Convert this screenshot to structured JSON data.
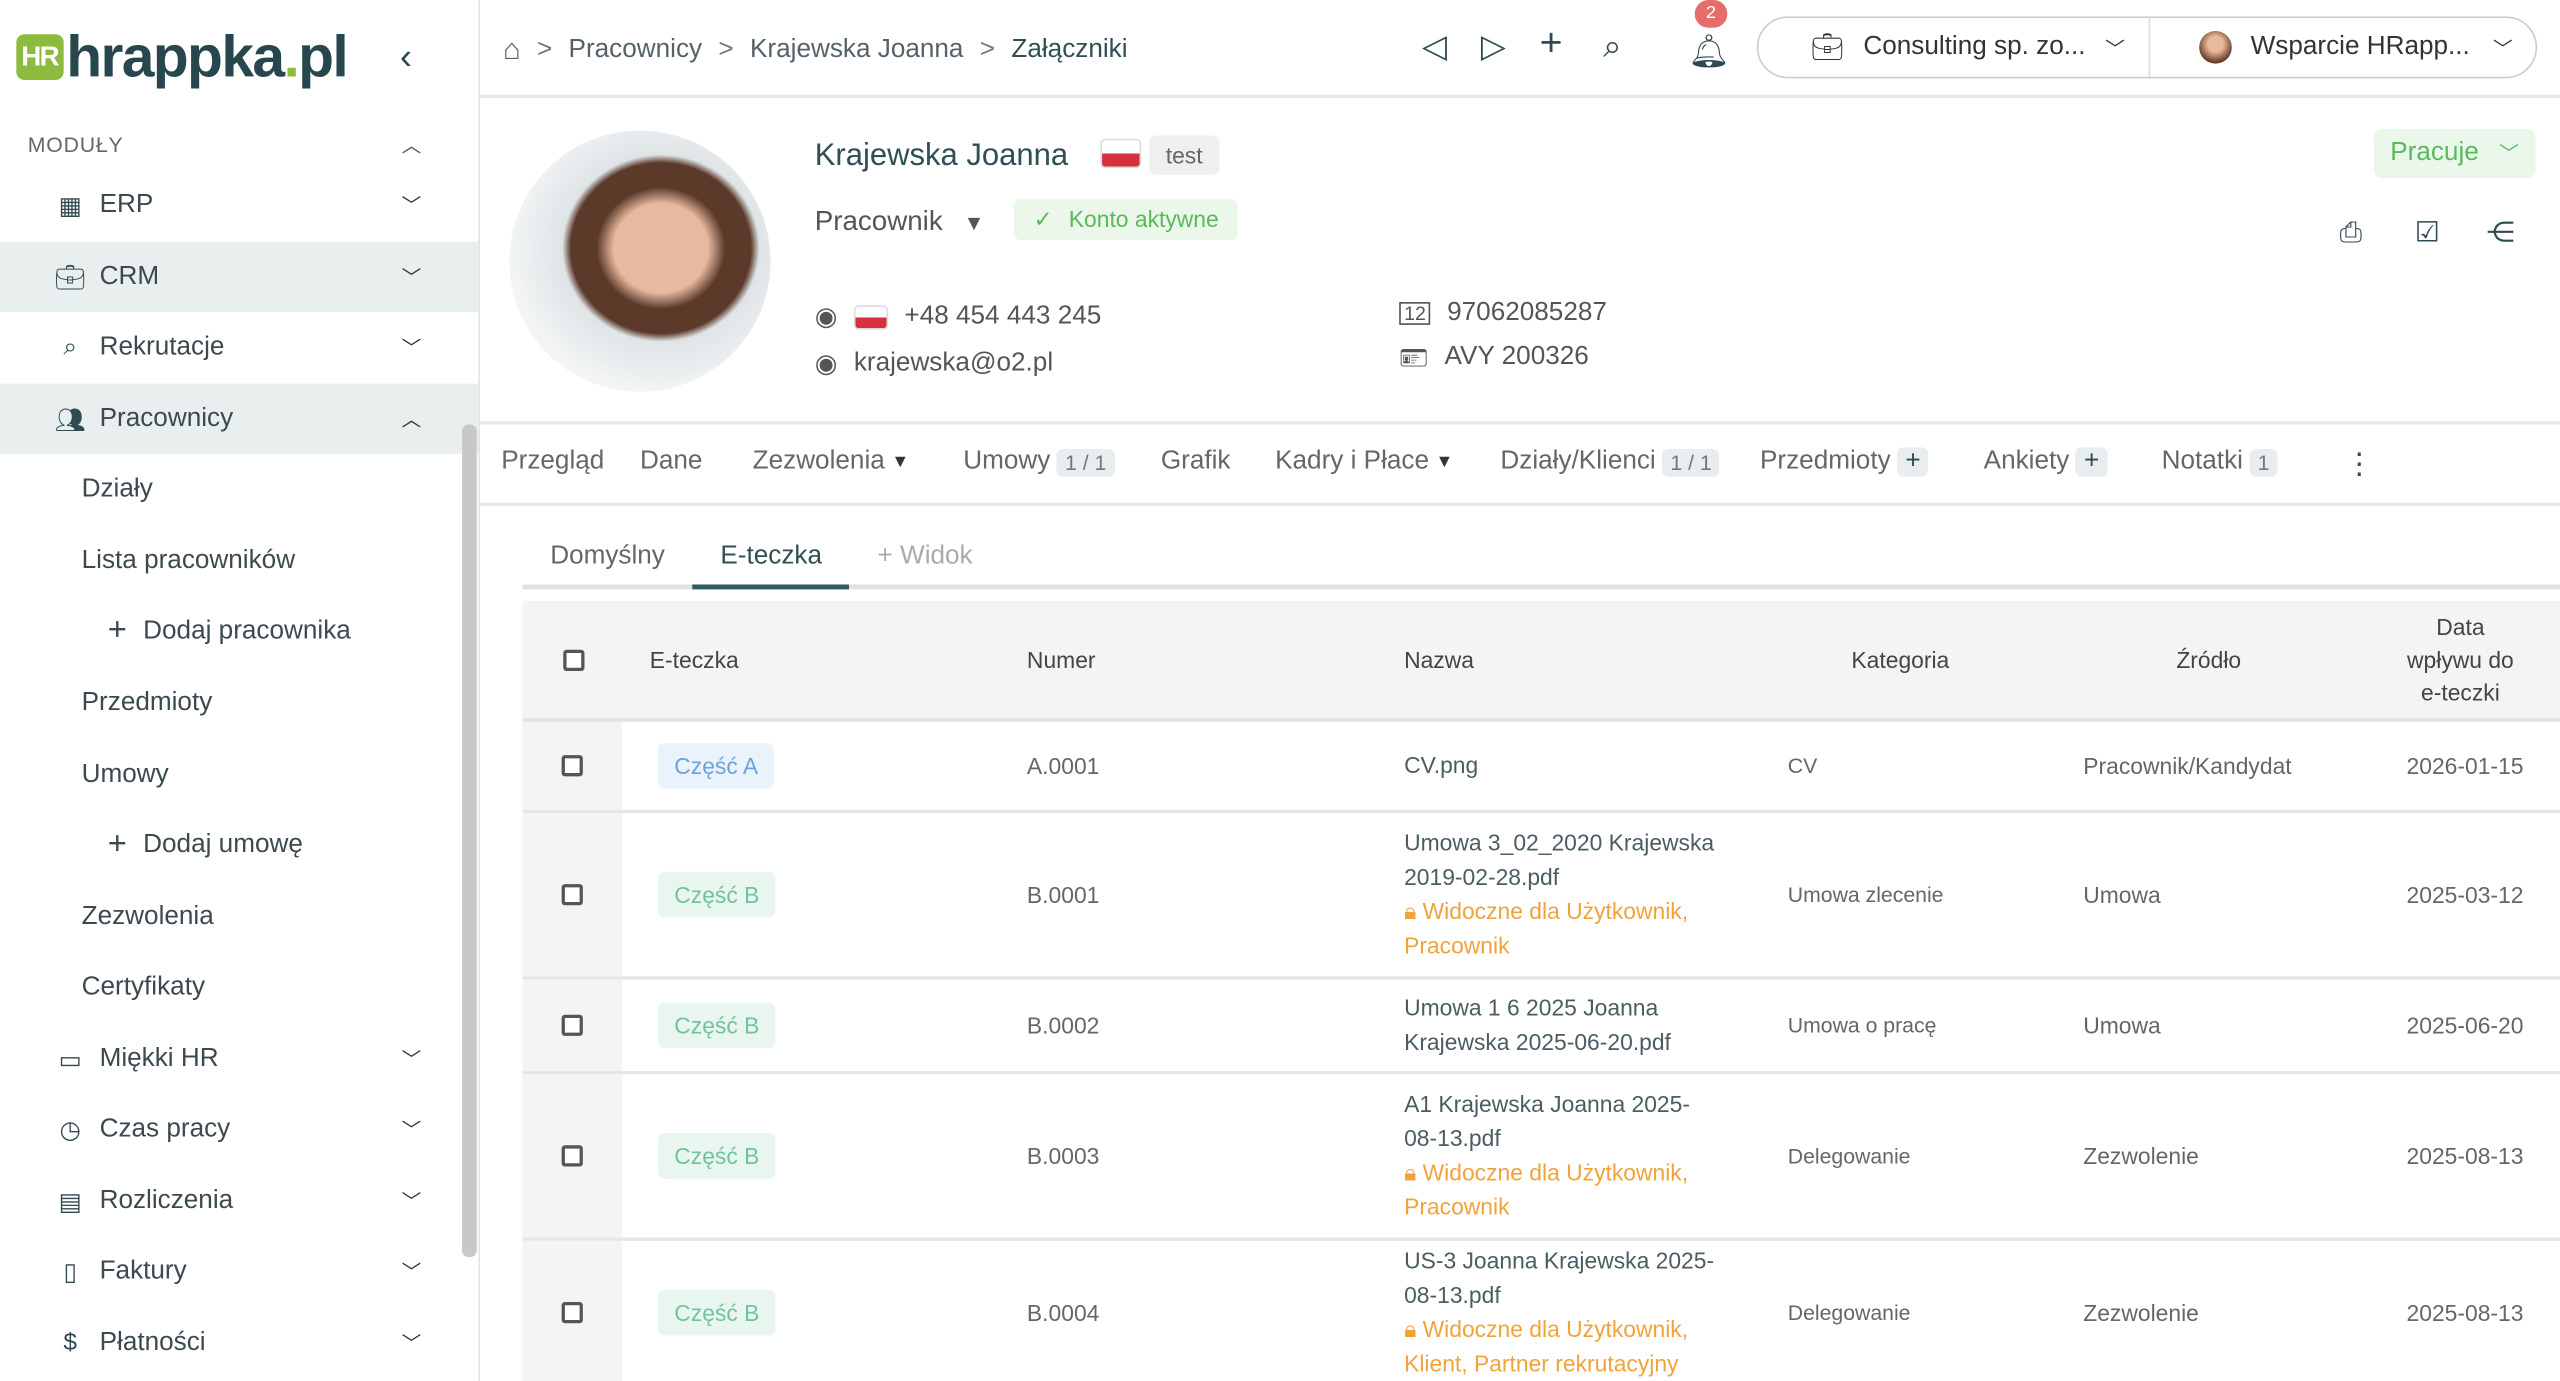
{
  "logo": {
    "text": "hrappka.pl"
  },
  "sidebar": {
    "section": "MODUŁY",
    "items": [
      {
        "label": "ERP",
        "icon": "building-icon"
      },
      {
        "label": "CRM",
        "icon": "briefcase-icon"
      },
      {
        "label": "Rekrutacje",
        "icon": "search-icon"
      },
      {
        "label": "Pracownicy",
        "icon": "users-icon"
      },
      {
        "label": "Działy"
      },
      {
        "label": "Lista pracowników"
      },
      {
        "label": "Dodaj pracownika"
      },
      {
        "label": "Przedmioty"
      },
      {
        "label": "Umowy"
      },
      {
        "label": "Dodaj umowę"
      },
      {
        "label": "Zezwolenia"
      },
      {
        "label": "Certyfikaty"
      },
      {
        "label": "Miękki HR",
        "icon": "teacher-icon"
      },
      {
        "label": "Czas pracy",
        "icon": "briefcase-clock-icon"
      },
      {
        "label": "Rozliczenia",
        "icon": "calculator-icon"
      },
      {
        "label": "Faktury",
        "icon": "invoice-icon"
      },
      {
        "label": "Płatności",
        "icon": "dollar-icon"
      }
    ]
  },
  "breadcrumb": [
    "Pracownicy",
    "Krajewska Joanna",
    "Załączniki"
  ],
  "topbar": {
    "notifications": "2",
    "company": "Consulting sp. zo...",
    "user": "Wsparcie HRapp..."
  },
  "profile": {
    "name": "Krajewska Joanna",
    "tag": "test",
    "role": "Pracownik",
    "account": "Konto aktywne",
    "status": "Pracuje",
    "phone": "+48 454 443 245",
    "email": "krajewska@o2.pl",
    "pesel": "97062085287",
    "id_doc": "AVY 200326"
  },
  "tabs": [
    {
      "label": "Przegląd"
    },
    {
      "label": "Dane"
    },
    {
      "label": "Zezwolenia",
      "dropdown": true
    },
    {
      "label": "Umowy",
      "count": "1 / 1"
    },
    {
      "label": "Grafik"
    },
    {
      "label": "Kadry i Płace",
      "dropdown": true
    },
    {
      "label": "Działy/Klienci",
      "count": "1 / 1"
    },
    {
      "label": "Przedmioty",
      "plus": "+"
    },
    {
      "label": "Ankiety",
      "plus": "+"
    },
    {
      "label": "Notatki",
      "count": "1"
    }
  ],
  "subtabs": [
    "Domyślny",
    "E-teczka",
    "+ Widok"
  ],
  "table": {
    "headers": [
      "E-teczka",
      "Numer",
      "Nazwa",
      "Kategoria",
      "Źródło",
      "Data wpływu do e-teczki"
    ],
    "rows": [
      {
        "part": "Część A",
        "num": "A.0001",
        "name": "CV.png",
        "vis": "",
        "cat": "CV",
        "src": "Pracownik/Kandydat",
        "date": "2026-01-15"
      },
      {
        "part": "Część B",
        "num": "B.0001",
        "name": "Umowa 3_02_2020 Krajewska 2019-02-28.pdf",
        "vis": "Widoczne dla Użytkownik, Pracownik",
        "cat": "Umowa zlecenie",
        "src": "Umowa",
        "date": "2025-03-12"
      },
      {
        "part": "Część B",
        "num": "B.0002",
        "name": "Umowa 1 6 2025 Joanna Krajewska 2025-06-20.pdf",
        "vis": "",
        "cat": "Umowa o pracę",
        "src": "Umowa",
        "date": "2025-06-20"
      },
      {
        "part": "Część B",
        "num": "B.0003",
        "name": "A1 Krajewska Joanna 2025-08-13.pdf",
        "vis": "Widoczne dla Użytkownik, Pracownik",
        "cat": "Delegowanie",
        "src": "Zezwolenie",
        "date": "2025-08-13"
      },
      {
        "part": "Część B",
        "num": "B.0004",
        "name": "US-3 Joanna Krajewska 2025-08-13.pdf",
        "vis": "Widoczne dla Użytkownik, Klient, Partner rekrutacyjny",
        "cat": "Delegowanie",
        "src": "Zezwolenie",
        "date": "2025-08-13"
      }
    ]
  },
  "colors": {
    "brand_green": "#8dbb3d",
    "brand_dark": "#27464d",
    "success": "#5cb85c",
    "warning": "#f0a33a",
    "badge": "#e46f6a"
  }
}
